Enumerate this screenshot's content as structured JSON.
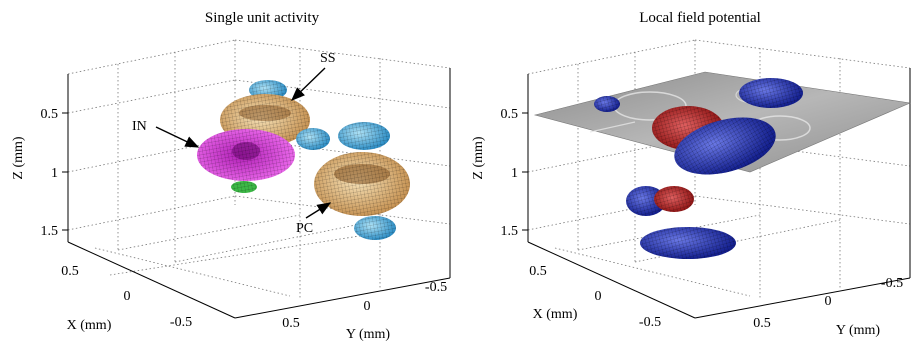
{
  "left_panel": {
    "title": "Single unit activity",
    "z_axis": {
      "label": "Z (mm)",
      "ticks": [
        "0.5",
        "1",
        "1.5"
      ]
    },
    "x_axis": {
      "label": "X (mm)",
      "ticks": [
        "0.5",
        "0",
        "-0.5"
      ]
    },
    "y_axis": {
      "label": "Y (mm)",
      "ticks": [
        "0.5",
        "0",
        "-0.5"
      ]
    },
    "annotations": {
      "ss": "SS",
      "in": "IN",
      "pc": "PC"
    },
    "colors": {
      "ss": "#3aa6d8",
      "in": "#d22ad6",
      "pc": "#d9a867",
      "small": "#3cb846"
    }
  },
  "right_panel": {
    "title": "Local field potential",
    "z_axis": {
      "label": "Z (mm)",
      "ticks": [
        "0.5",
        "1",
        "1.5"
      ]
    },
    "x_axis": {
      "label": "X (mm)",
      "ticks": [
        "0.5",
        "0",
        "-0.5"
      ]
    },
    "y_axis": {
      "label": "Y (mm)",
      "ticks": [
        "0.5",
        "0",
        "-0.5"
      ]
    },
    "colors": {
      "blue": "#1b2ab6",
      "red": "#b01818",
      "slice": "#9a9a9a"
    }
  }
}
